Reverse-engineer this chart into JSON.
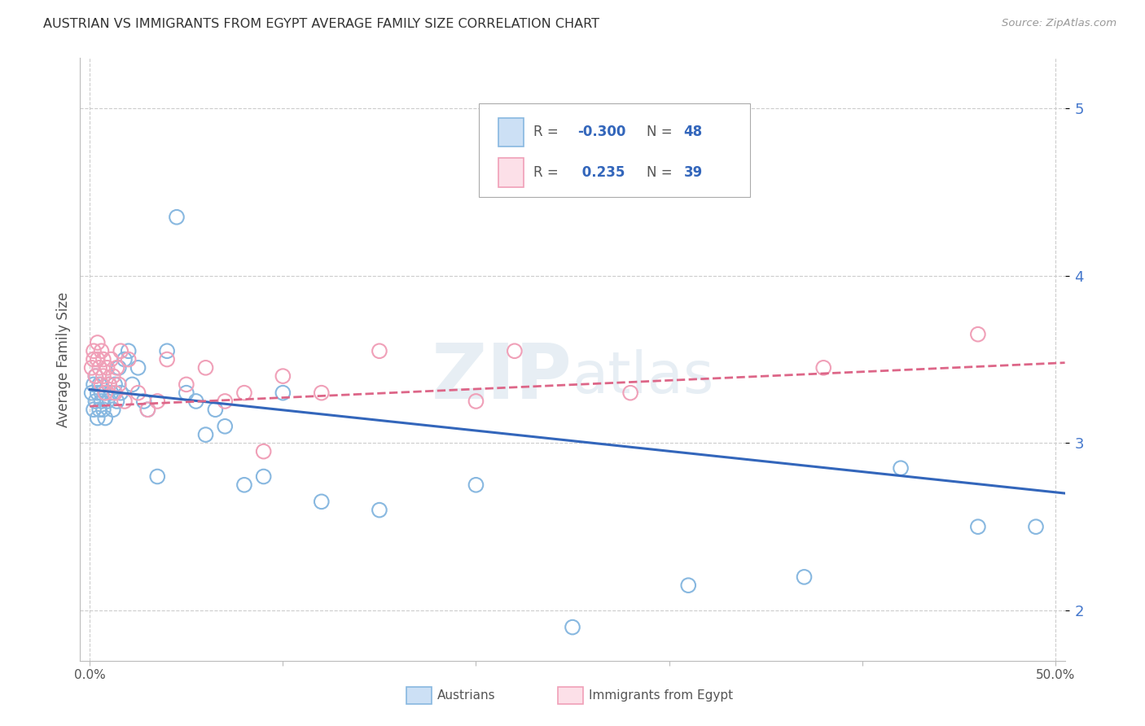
{
  "title": "AUSTRIAN VS IMMIGRANTS FROM EGYPT AVERAGE FAMILY SIZE CORRELATION CHART",
  "source": "Source: ZipAtlas.com",
  "ylabel": "Average Family Size",
  "yticks": [
    2.0,
    3.0,
    4.0,
    5.0
  ],
  "xlim": [
    -0.005,
    0.505
  ],
  "ylim": [
    1.7,
    5.3
  ],
  "watermark": "ZIPatlas",
  "blue_color": "#88b8e0",
  "pink_color": "#f0a0b8",
  "blue_line_color": "#3366bb",
  "pink_line_color": "#dd6688",
  "austrians_x": [
    0.001,
    0.002,
    0.002,
    0.003,
    0.003,
    0.004,
    0.004,
    0.005,
    0.005,
    0.006,
    0.006,
    0.007,
    0.008,
    0.008,
    0.009,
    0.01,
    0.011,
    0.012,
    0.013,
    0.014,
    0.015,
    0.016,
    0.018,
    0.02,
    0.022,
    0.025,
    0.028,
    0.03,
    0.035,
    0.04,
    0.045,
    0.05,
    0.055,
    0.06,
    0.065,
    0.07,
    0.08,
    0.09,
    0.1,
    0.12,
    0.15,
    0.2,
    0.25,
    0.31,
    0.37,
    0.42,
    0.46,
    0.49
  ],
  "austrians_y": [
    3.3,
    3.35,
    3.2,
    3.25,
    3.4,
    3.3,
    3.15,
    3.35,
    3.2,
    3.3,
    3.25,
    3.2,
    3.3,
    3.15,
    3.25,
    3.35,
    3.3,
    3.2,
    3.35,
    3.25,
    3.45,
    3.3,
    3.5,
    3.55,
    3.35,
    3.45,
    3.25,
    3.2,
    2.8,
    3.55,
    4.35,
    3.3,
    3.25,
    3.05,
    3.2,
    3.1,
    2.75,
    2.8,
    3.3,
    2.65,
    2.6,
    2.75,
    1.9,
    2.15,
    2.2,
    2.85,
    2.5,
    2.5
  ],
  "egypt_x": [
    0.001,
    0.002,
    0.002,
    0.003,
    0.004,
    0.004,
    0.005,
    0.006,
    0.006,
    0.007,
    0.007,
    0.008,
    0.009,
    0.01,
    0.011,
    0.012,
    0.013,
    0.014,
    0.015,
    0.016,
    0.018,
    0.02,
    0.025,
    0.03,
    0.035,
    0.04,
    0.05,
    0.06,
    0.07,
    0.08,
    0.09,
    0.1,
    0.12,
    0.15,
    0.2,
    0.22,
    0.28,
    0.38,
    0.46
  ],
  "egypt_y": [
    3.45,
    3.55,
    3.5,
    3.4,
    3.5,
    3.6,
    3.45,
    3.55,
    3.35,
    3.5,
    3.4,
    3.3,
    3.45,
    3.35,
    3.5,
    3.4,
    3.3,
    3.45,
    3.35,
    3.55,
    3.25,
    3.5,
    3.3,
    3.2,
    3.25,
    3.5,
    3.35,
    3.45,
    3.25,
    3.3,
    2.95,
    3.4,
    3.3,
    3.55,
    3.25,
    3.55,
    3.3,
    3.45,
    3.65
  ],
  "blue_trendline_x": [
    0.0,
    0.505
  ],
  "blue_trendline_y": [
    3.32,
    2.7
  ],
  "pink_trendline_x": [
    0.0,
    0.505
  ],
  "pink_trendline_y": [
    3.22,
    3.48
  ],
  "legend_r1_color": "#3366bb",
  "legend_r2_color": "#dd6688",
  "legend_n_color": "#3366bb"
}
